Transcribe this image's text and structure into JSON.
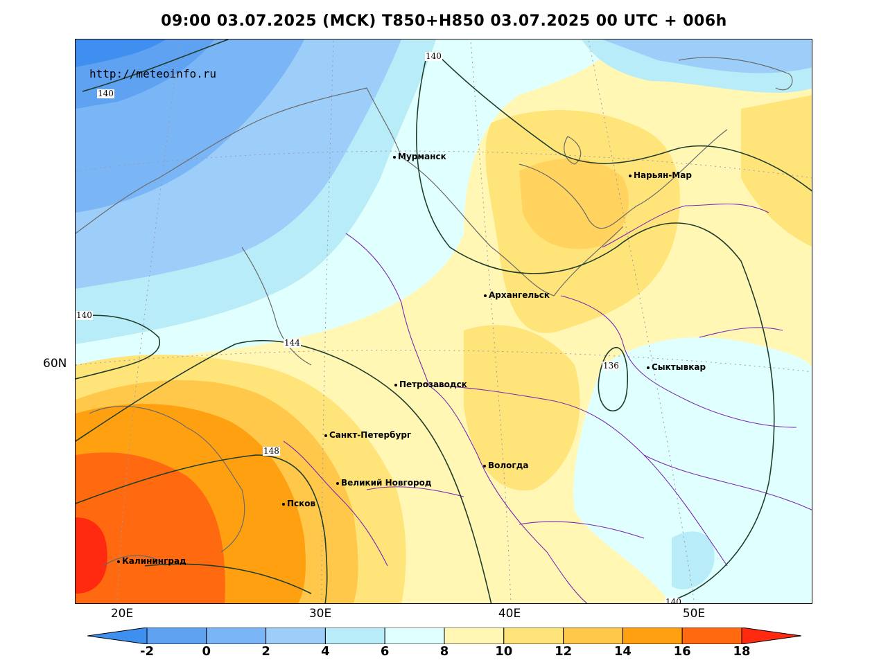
{
  "title": "09:00 03.07.2025 (MCK) T850+H850 03.07.2025 00 UTC + 006h",
  "watermark": "http://meteoinfo.ru",
  "lon_labels": [
    "20E",
    "30E",
    "40E",
    "50E"
  ],
  "lat_labels": [
    "60N"
  ],
  "cities": [
    {
      "name": "Мурманск"
    },
    {
      "name": "Нарьян-Мар"
    },
    {
      "name": "Архангельск"
    },
    {
      "name": "Сыктывкар"
    },
    {
      "name": "Петрозаводск"
    },
    {
      "name": "Санкт-Петербург"
    },
    {
      "name": "Вологда"
    },
    {
      "name": "Великий Новгород"
    },
    {
      "name": "Псков"
    },
    {
      "name": "Калининград"
    }
  ],
  "contour_labels": [
    "140",
    "140",
    "140",
    "144",
    "148",
    "136",
    "140"
  ],
  "colorbar": {
    "ticks": [
      "-2",
      "0",
      "2",
      "4",
      "6",
      "8",
      "10",
      "12",
      "14",
      "16",
      "18"
    ],
    "colors": [
      "#3f8ff0",
      "#5fa2f2",
      "#7ab6f6",
      "#9ccef9",
      "#b8ecf8",
      "#e0ffff",
      "#fff7b3",
      "#ffe47a",
      "#ffc84a",
      "#ffa010",
      "#ff6a10",
      "#ff2a10"
    ]
  }
}
